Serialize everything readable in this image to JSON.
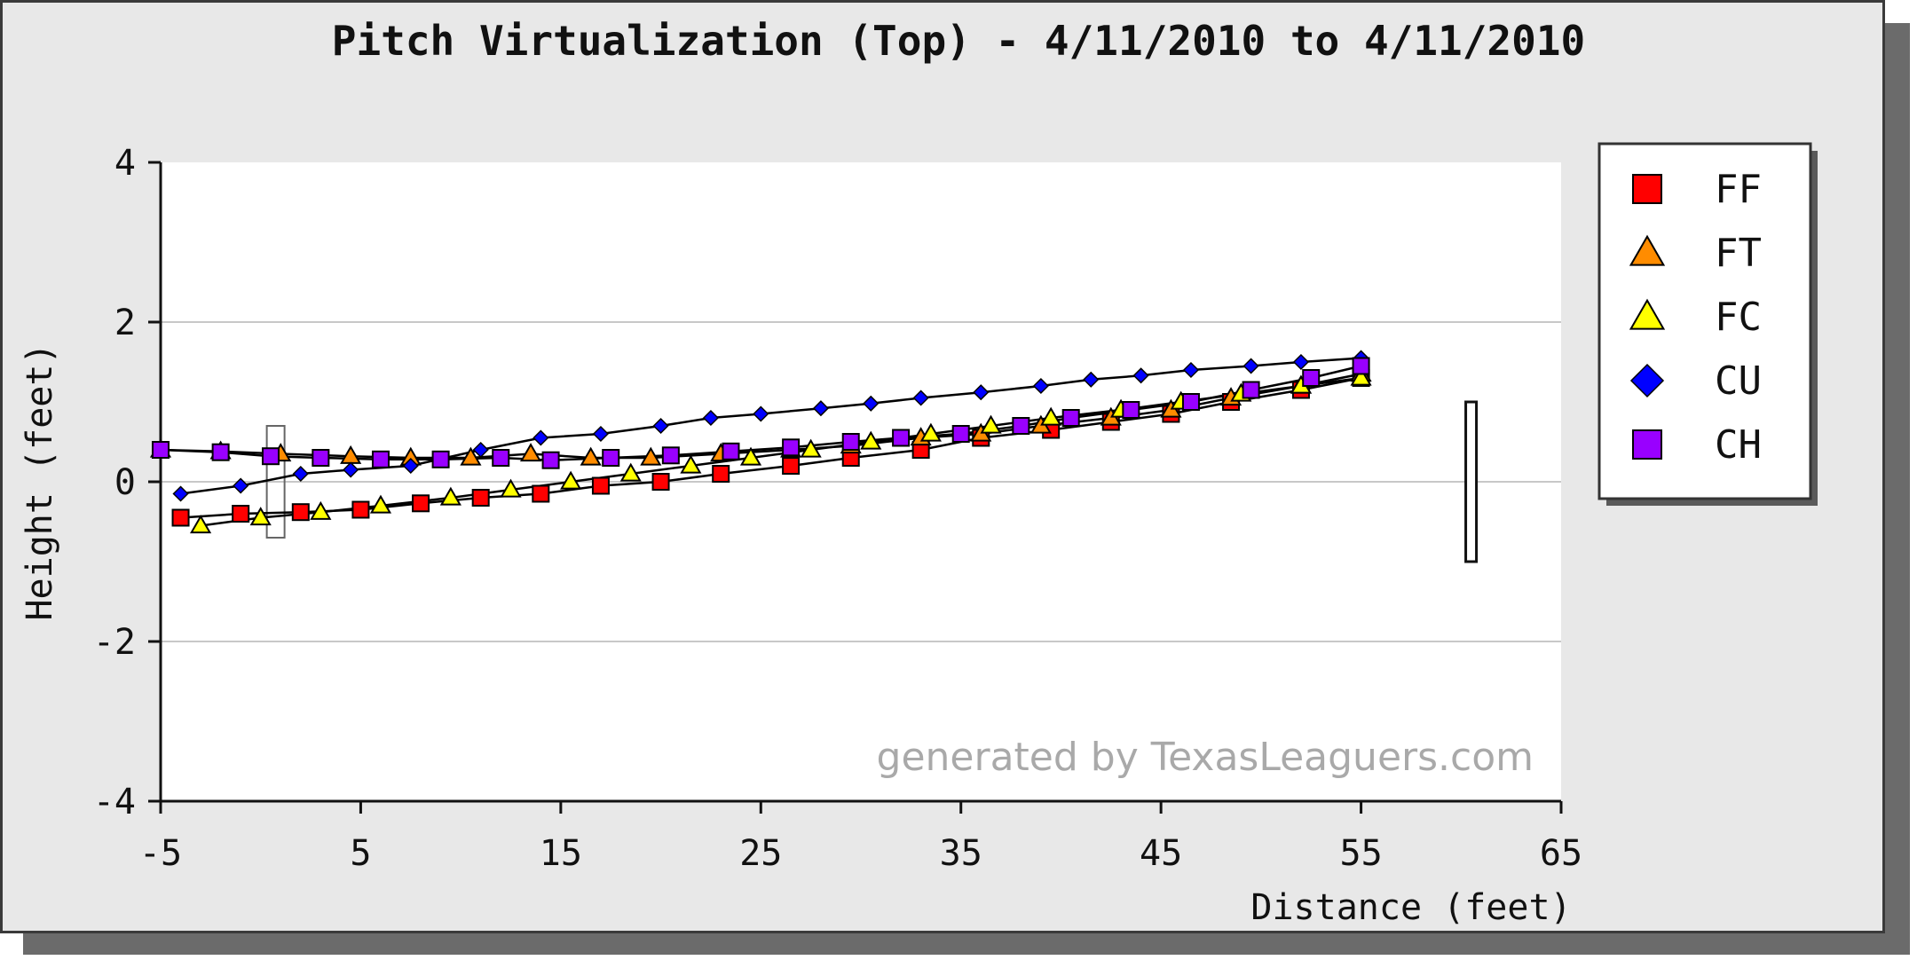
{
  "chart_data": {
    "type": "line",
    "title": "Pitch Virtualization (Top) - 4/11/2010 to 4/11/2010",
    "xlabel": "Distance (feet)",
    "ylabel": "Height (feet)",
    "xlim": [
      -5,
      65
    ],
    "ylim": [
      -4,
      4
    ],
    "xticks": [
      -5,
      5,
      15,
      25,
      35,
      45,
      55,
      65
    ],
    "yticks": [
      -4,
      -2,
      0,
      2,
      4
    ],
    "grid": true,
    "legend_position": "right",
    "watermark": "generated by TexasLeaguers.com",
    "series": [
      {
        "name": "FF",
        "marker": "square",
        "color": "#ff0000",
        "x": [
          -4,
          -1,
          2,
          5,
          8,
          11,
          14,
          17,
          20,
          23,
          26.5,
          29.5,
          33,
          36,
          39.5,
          42.5,
          45.5,
          48.5,
          52,
          55
        ],
        "y": [
          -0.45,
          -0.4,
          -0.38,
          -0.35,
          -0.27,
          -0.2,
          -0.15,
          -0.05,
          0.0,
          0.1,
          0.2,
          0.3,
          0.4,
          0.55,
          0.65,
          0.75,
          0.85,
          1.0,
          1.15,
          1.3
        ]
      },
      {
        "name": "FT",
        "marker": "triangle",
        "color": "#ff8c00",
        "x": [
          -5,
          -2,
          1,
          4.5,
          7.5,
          10.5,
          13.5,
          16.5,
          19.5,
          23,
          26.5,
          29.5,
          33,
          36,
          39,
          42.5,
          45.5,
          48.5,
          52,
          55
        ],
        "y": [
          0.4,
          0.38,
          0.35,
          0.32,
          0.3,
          0.3,
          0.35,
          0.3,
          0.3,
          0.35,
          0.4,
          0.45,
          0.55,
          0.6,
          0.7,
          0.8,
          0.9,
          1.05,
          1.2,
          1.35
        ]
      },
      {
        "name": "FC",
        "marker": "triangle",
        "color": "#ffff00",
        "x": [
          -3,
          0,
          3,
          6,
          9.5,
          12.5,
          15.5,
          18.5,
          21.5,
          24.5,
          27.5,
          30.5,
          33.5,
          36.5,
          39.5,
          43,
          46,
          49,
          52,
          55
        ],
        "y": [
          -0.55,
          -0.45,
          -0.38,
          -0.3,
          -0.2,
          -0.1,
          0.0,
          0.1,
          0.2,
          0.3,
          0.4,
          0.5,
          0.6,
          0.7,
          0.8,
          0.9,
          1.0,
          1.1,
          1.2,
          1.3
        ]
      },
      {
        "name": "CU",
        "marker": "diamond",
        "color": "#0000ff",
        "x": [
          -4,
          -1,
          2,
          4.5,
          7.5,
          11,
          14,
          17,
          20,
          22.5,
          25,
          28,
          30.5,
          33,
          36,
          39,
          41.5,
          44,
          46.5,
          49.5,
          52,
          55
        ],
        "y": [
          -0.15,
          -0.05,
          0.1,
          0.15,
          0.2,
          0.4,
          0.55,
          0.6,
          0.7,
          0.8,
          0.85,
          0.92,
          0.98,
          1.05,
          1.12,
          1.2,
          1.28,
          1.33,
          1.4,
          1.45,
          1.5,
          1.55
        ]
      },
      {
        "name": "CH",
        "marker": "square",
        "color": "#9900ff",
        "x": [
          -5,
          -2,
          0.5,
          3,
          6,
          9,
          12,
          14.5,
          17.5,
          20.5,
          23.5,
          26.5,
          29.5,
          32,
          35,
          38,
          40.5,
          43.5,
          46.5,
          49.5,
          52.5,
          55
        ],
        "y": [
          0.4,
          0.37,
          0.32,
          0.3,
          0.28,
          0.28,
          0.3,
          0.27,
          0.3,
          0.33,
          0.38,
          0.43,
          0.5,
          0.55,
          0.6,
          0.7,
          0.8,
          0.9,
          1.0,
          1.15,
          1.3,
          1.45
        ]
      }
    ],
    "strike_zone": {
      "x": 60.5,
      "y_bottom": -1,
      "y_top": 1
    },
    "release_box": {
      "x": 0.75,
      "y_bottom": -0.7,
      "y_top": 0.7
    }
  }
}
